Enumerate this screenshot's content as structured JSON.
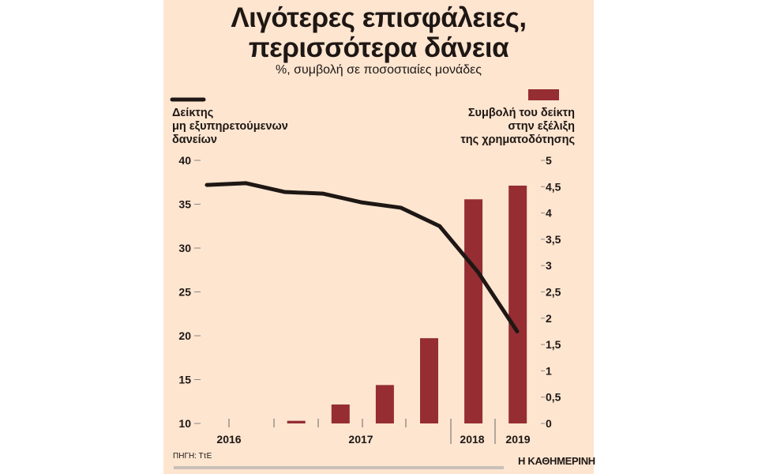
{
  "colors": {
    "background": "#fde5d0",
    "bar": "#952d33",
    "line": "#1e1714"
  },
  "chart_data": {
    "type": "bar+line",
    "title": [
      "Λιγότερες επισφάλειες,",
      "περισσότερα δάνεια"
    ],
    "subtitle": "%, συμβολή σε ποσοστιαίες μονάδες",
    "legend": {
      "line": [
        "Δείκτης",
        "μη εξυπηρετούμενων",
        "δανείων"
      ],
      "bar": [
        "Συμβολή του δείκτη",
        "στην εξέλιξη",
        "της χρηματοδότησης"
      ]
    },
    "x_year_labels": [
      "2016",
      "2017",
      "2018",
      "2019"
    ],
    "left_axis": {
      "ylim": [
        10,
        40
      ],
      "ticks": [
        "10",
        "15",
        "20",
        "25",
        "30",
        "35",
        "40"
      ]
    },
    "right_axis": {
      "ylim": [
        0,
        5
      ],
      "ticks": [
        "0",
        "0,5",
        "1",
        "1,5",
        "2",
        "2,5",
        "3",
        "3,5",
        "4",
        "4,5",
        "5"
      ]
    },
    "series": [
      {
        "name": "Δείκτης μη εξυπηρετούμενων δανείων",
        "type": "line",
        "axis": "left",
        "values": [
          37.2,
          37.4,
          36.4,
          36.2,
          35.2,
          34.6,
          32.5,
          27.2,
          20.5
        ]
      },
      {
        "name": "Συμβολή του δείκτη στην εξέλιξη της χρηματοδότησης",
        "type": "bar",
        "axis": "right",
        "values": [
          null,
          null,
          0.05,
          0.36,
          0.73,
          1.62,
          4.26,
          4.52
        ]
      }
    ],
    "grid": false
  },
  "footer": {
    "source": "ΠΗΓΗ: ΤτΕ",
    "brand": "Η ΚΑΘΗΜΕΡΙΝΗ"
  }
}
